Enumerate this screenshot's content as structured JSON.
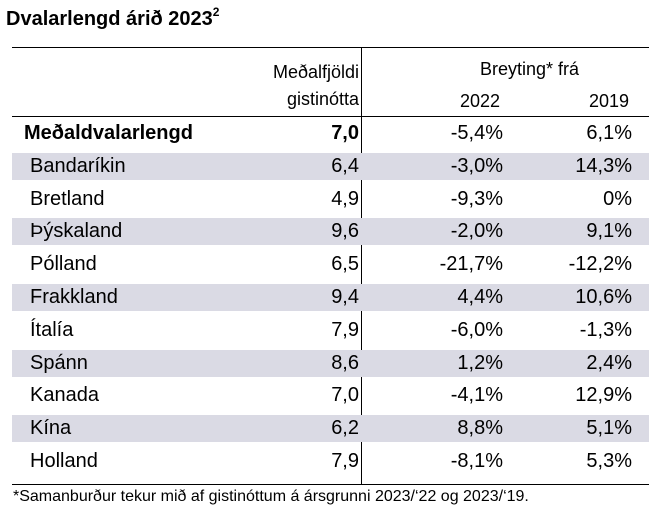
{
  "title": {
    "text": "Dvalarlengd árið 2023",
    "superscript": "2"
  },
  "header": {
    "avg_line1": "Meðalfjöldi",
    "avg_line2": "gistinótta",
    "change": "Breyting* frá",
    "year_a": "2022",
    "year_b": "2019"
  },
  "rows": [
    {
      "name": "Meðaldvalarlengd",
      "avg": "7,0",
      "y2022": "-5,4%",
      "y2019": "6,1%"
    },
    {
      "name": "Bandaríkin",
      "avg": "6,4",
      "y2022": "-3,0%",
      "y2019": "14,3%"
    },
    {
      "name": "Bretland",
      "avg": "4,9",
      "y2022": "-9,3%",
      "y2019": "0%"
    },
    {
      "name": "Þýskaland",
      "avg": "9,6",
      "y2022": "-2,0%",
      "y2019": "9,1%"
    },
    {
      "name": "Pólland",
      "avg": "6,5",
      "y2022": "-21,7%",
      "y2019": "-12,2%"
    },
    {
      "name": "Frakkland",
      "avg": "9,4",
      "y2022": "4,4%",
      "y2019": "10,6%"
    },
    {
      "name": "Ítalía",
      "avg": "7,9",
      "y2022": "-6,0%",
      "y2019": "-1,3%"
    },
    {
      "name": "Spánn",
      "avg": "8,6",
      "y2022": "1,2%",
      "y2019": "2,4%"
    },
    {
      "name": "Kanada",
      "avg": "7,0",
      "y2022": "-4,1%",
      "y2019": "12,9%"
    },
    {
      "name": "Kína",
      "avg": "6,2",
      "y2022": "8,8%",
      "y2019": "5,1%"
    },
    {
      "name": "Holland",
      "avg": "7,9",
      "y2022": "-8,1%",
      "y2019": "5,3%"
    }
  ],
  "footnote": "*Samanburður tekur mið af gistinóttum á ársgrunni 2023/‘22 og 2023/‘19.",
  "colors": {
    "row_shade": "#dadae4"
  }
}
